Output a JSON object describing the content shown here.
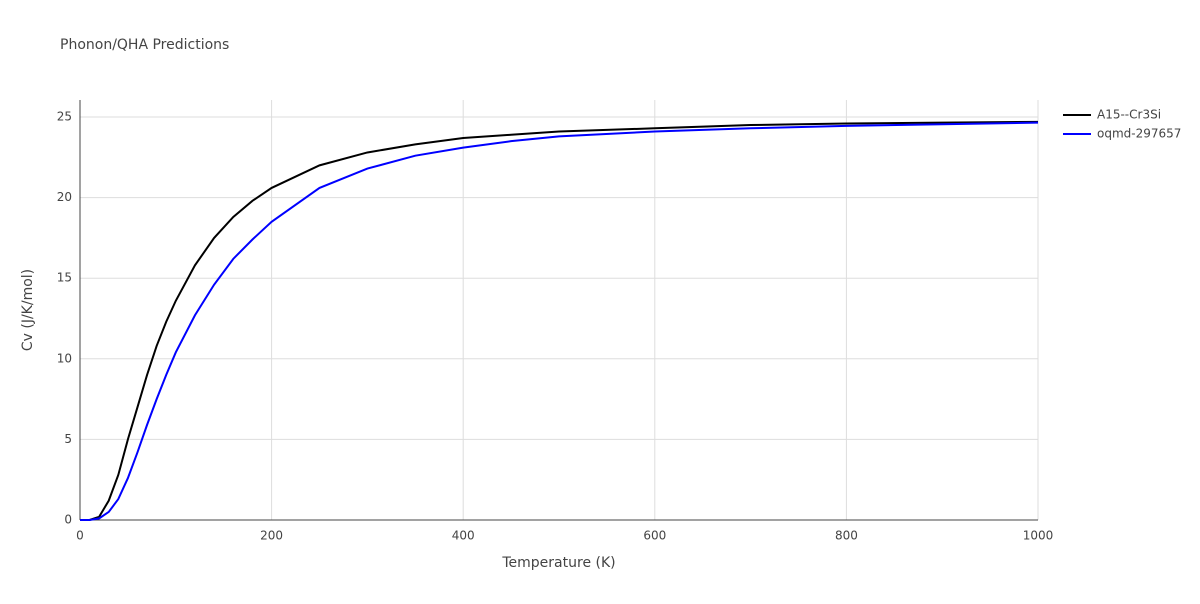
{
  "chart_data": {
    "type": "line",
    "title": "Phonon/QHA Predictions",
    "x_label": "Temperature (K)",
    "y_label": "Cv (J/K/mol)",
    "x": [
      0,
      10,
      20,
      30,
      40,
      50,
      60,
      70,
      80,
      90,
      100,
      120,
      140,
      160,
      180,
      200,
      250,
      300,
      350,
      400,
      450,
      500,
      600,
      700,
      800,
      900,
      1000
    ],
    "series": [
      {
        "name": "A15--Cr3Si",
        "color": "#000000",
        "values": [
          0,
          0,
          0.2,
          1.2,
          2.8,
          5,
          7,
          9,
          10.8,
          12.3,
          13.6,
          15.8,
          17.5,
          18.8,
          19.8,
          20.6,
          22.0,
          22.8,
          23.3,
          23.7,
          23.9,
          24.1,
          24.3,
          24.5,
          24.6,
          24.65,
          24.7
        ]
      },
      {
        "name": "oqmd-297657",
        "color": "#0000ff",
        "values": [
          0,
          0,
          0.1,
          0.5,
          1.3,
          2.6,
          4.2,
          5.9,
          7.5,
          9.0,
          10.4,
          12.7,
          14.6,
          16.2,
          17.4,
          18.5,
          20.6,
          21.8,
          22.6,
          23.1,
          23.5,
          23.8,
          24.1,
          24.3,
          24.45,
          24.55,
          24.65
        ]
      }
    ],
    "xlim": [
      0,
      1000
    ],
    "xticks": [
      0,
      200,
      400,
      600,
      800,
      1000
    ],
    "ylim": [
      0,
      25
    ],
    "yticks": [
      0,
      5,
      10,
      15,
      20,
      25
    ],
    "grid": true,
    "legend": "right"
  }
}
